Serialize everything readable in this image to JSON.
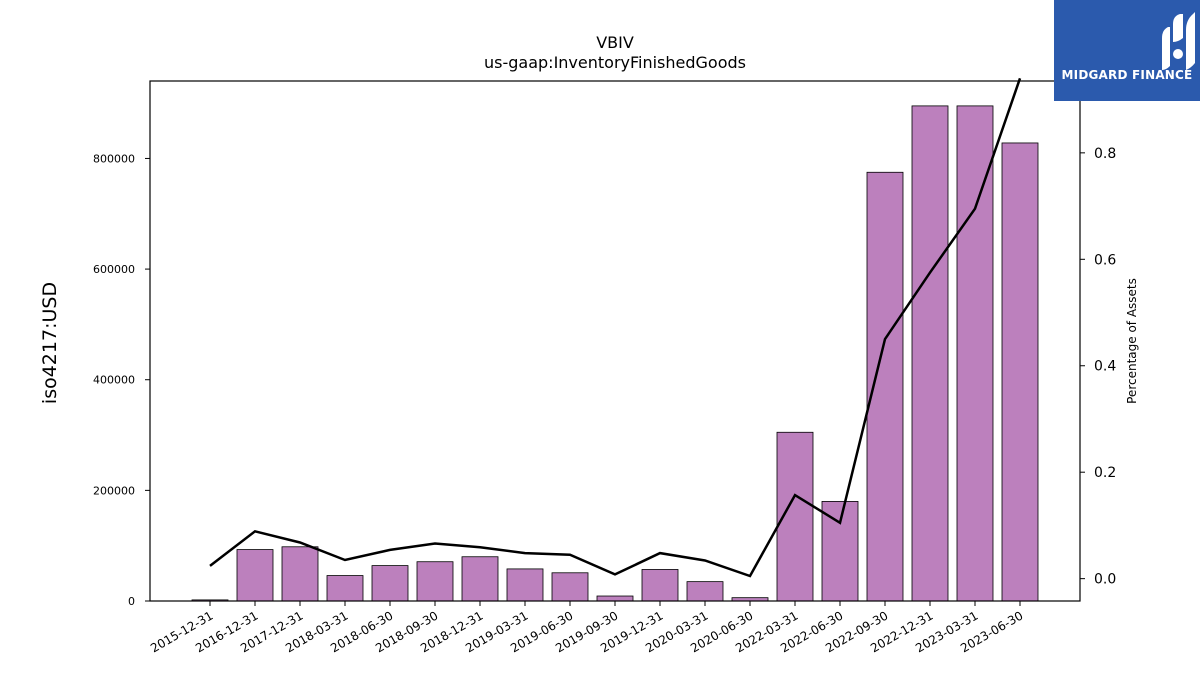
{
  "chart_data": {
    "type": "bar",
    "title": "VBIV",
    "subtitle": "us-gaap:InventoryFinishedGoods",
    "ylabel": "iso4217:USD",
    "y2label": "Percentage of Assets",
    "categories": [
      "2015-12-31",
      "2016-12-31",
      "2017-12-31",
      "2018-03-31",
      "2018-06-30",
      "2018-09-30",
      "2018-12-31",
      "2019-03-31",
      "2019-06-30",
      "2019-09-30",
      "2019-12-31",
      "2020-03-31",
      "2020-06-30",
      "2022-03-31",
      "2022-06-30",
      "2022-09-30",
      "2022-12-31",
      "2023-03-31",
      "2023-06-30"
    ],
    "series": [
      {
        "type": "bar",
        "color": "#bc80bd",
        "values": [
          2000,
          93000,
          98000,
          46000,
          64000,
          71000,
          80000,
          58000,
          51000,
          9000,
          57000,
          35000,
          6000,
          305000,
          180000,
          775000,
          895000,
          895000,
          828000
        ]
      },
      {
        "type": "line",
        "axis": "right",
        "color": "#000000",
        "values": [
          0.024,
          0.089,
          0.068,
          0.035,
          0.054,
          0.066,
          0.059,
          0.048,
          0.045,
          0.008,
          0.048,
          0.034,
          0.005,
          0.157,
          0.105,
          0.45,
          0.575,
          0.695,
          0.94
        ]
      }
    ],
    "yticks": [
      0,
      200000,
      400000,
      600000,
      800000
    ],
    "y2ticks": [
      "0.0",
      "0.2",
      "0.4",
      "0.6",
      "0.8"
    ],
    "ylim": [
      0,
      940000
    ],
    "y2lim": [
      -0.042,
      0.935
    ],
    "grid": false,
    "legend": "none"
  },
  "logo": {
    "text": "MIDGARD FINANCE",
    "bg": "#2b5aad"
  }
}
